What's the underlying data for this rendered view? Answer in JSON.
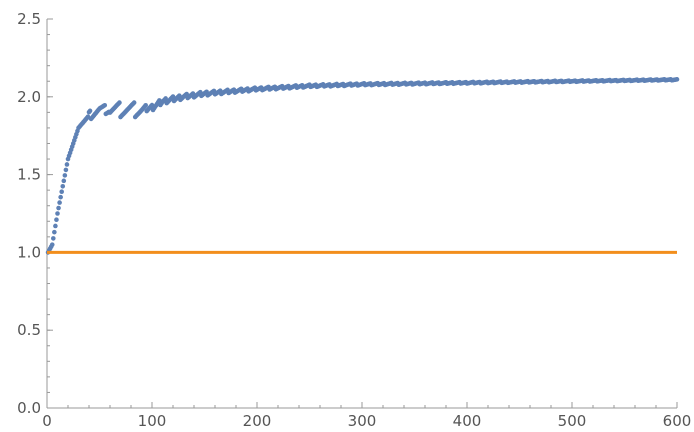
{
  "chart_data": {
    "type": "scatter",
    "xlim": [
      0,
      600
    ],
    "ylim": [
      0.0,
      2.5
    ],
    "x_ticks": [
      "0",
      "100",
      "200",
      "300",
      "400",
      "500",
      "600"
    ],
    "y_ticks": [
      "0.0",
      "0.5",
      "1.0",
      "1.5",
      "2.0",
      "2.5"
    ],
    "x_minor_step": 20,
    "y_minor_step": 0.1,
    "grid": false,
    "legend": "none",
    "series": [
      {
        "kind": "scatter",
        "color": "#5E81B5",
        "x_range": [
          1,
          600
        ],
        "envelope_anchors": [
          [
            1,
            1.0
          ],
          [
            5,
            1.05
          ],
          [
            10,
            1.25
          ],
          [
            20,
            1.6
          ],
          [
            30,
            1.8
          ],
          [
            40,
            1.88
          ],
          [
            50,
            1.92
          ],
          [
            70,
            1.92
          ],
          [
            90,
            1.92
          ],
          [
            100,
            1.93
          ],
          [
            110,
            1.97
          ],
          [
            130,
            2.0
          ],
          [
            150,
            2.02
          ],
          [
            200,
            2.05
          ],
          [
            250,
            2.07
          ],
          [
            300,
            2.08
          ],
          [
            400,
            2.09
          ],
          [
            500,
            2.1
          ],
          [
            600,
            2.11
          ]
        ],
        "sawtooth_amplitude": 0.05
      },
      {
        "kind": "line",
        "color": "#F28E1C",
        "x": [
          0,
          600
        ],
        "y": [
          1.0,
          1.0
        ]
      }
    ]
  }
}
